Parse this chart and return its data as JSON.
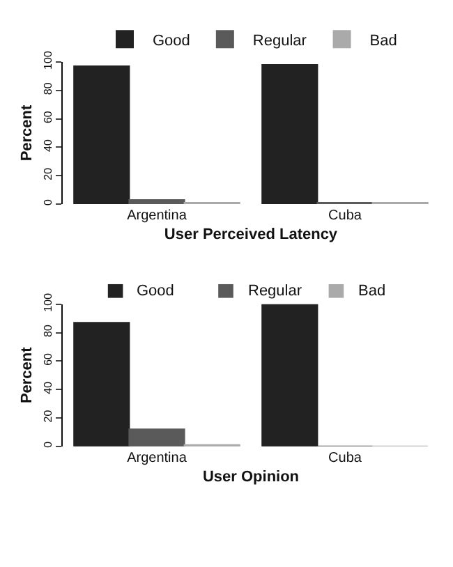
{
  "chart_data": [
    {
      "type": "bar",
      "xlabel": "User Perceived Latency",
      "ylabel": "Percent",
      "categories": [
        "Argentina",
        "Cuba"
      ],
      "ylim": [
        0,
        100
      ],
      "yticks": [
        0,
        20,
        40,
        60,
        80,
        100
      ],
      "grid": false,
      "legend": "top",
      "series": [
        {
          "name": "Good",
          "color": "#222222",
          "values": [
            97,
            98
          ]
        },
        {
          "name": "Regular",
          "color": "#5a5a5a",
          "values": [
            3,
            1
          ]
        },
        {
          "name": "Bad",
          "color": "#aaaaaa",
          "values": [
            1,
            1
          ]
        }
      ]
    },
    {
      "type": "bar",
      "xlabel": "User Opinion",
      "ylabel": "Percent",
      "categories": [
        "Argentina",
        "Cuba"
      ],
      "ylim": [
        0,
        100
      ],
      "yticks": [
        0,
        20,
        40,
        60,
        80,
        100
      ],
      "grid": false,
      "legend": "top",
      "series": [
        {
          "name": "Good",
          "color": "#222222",
          "values": [
            87,
            100
          ]
        },
        {
          "name": "Regular",
          "color": "#5a5a5a",
          "values": [
            12,
            0
          ]
        },
        {
          "name": "Bad",
          "color": "#aaaaaa",
          "values": [
            1,
            0
          ]
        }
      ]
    }
  ]
}
